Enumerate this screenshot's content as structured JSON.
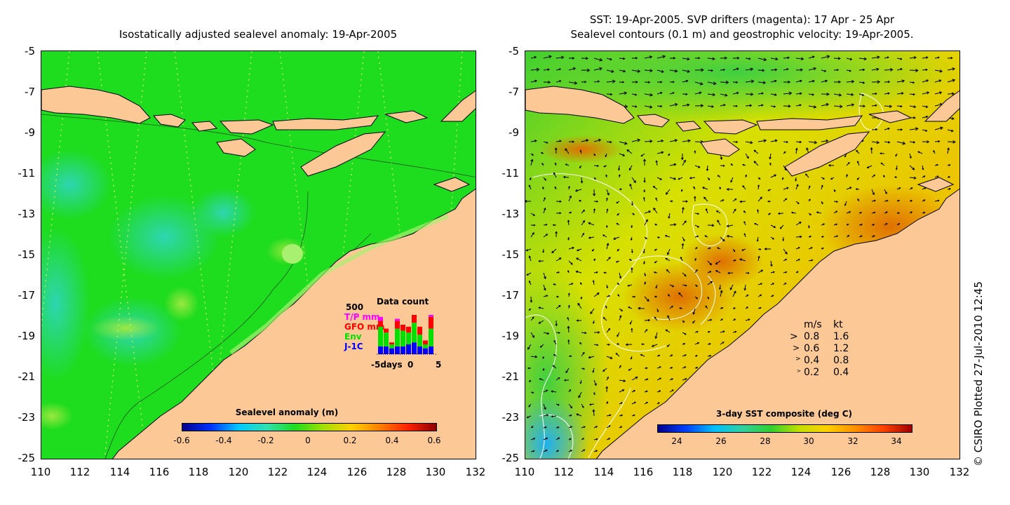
{
  "left_panel": {
    "title": "Isostatically adjusted sealevel anomaly: 19-Apr-2005",
    "y_ticks": [
      "-5",
      "-7",
      "-9",
      "-11",
      "-13",
      "-15",
      "-17",
      "-19",
      "-21",
      "-23",
      "-25"
    ],
    "x_ticks": [
      "110",
      "112",
      "114",
      "116",
      "118",
      "120",
      "122",
      "124",
      "126",
      "128",
      "130",
      "132"
    ],
    "colorbar": {
      "title": "Sealevel anomaly (m)",
      "ticks": [
        "-0.6",
        "-0.4",
        "-0.2",
        "0",
        "0.2",
        "0.4",
        "0.6"
      ]
    },
    "inset": {
      "title": "Data count",
      "scale_label": "500",
      "legend": [
        {
          "label": "T/P mm",
          "color": "#ff00ff"
        },
        {
          "label": "GFO mm",
          "color": "#ff0000"
        },
        {
          "label": "Env",
          "color": "#00e000"
        },
        {
          "label": "J-1C",
          "color": "#0000ff"
        }
      ],
      "x_labels": [
        "-5days",
        "0",
        "5"
      ],
      "bars": [
        {
          "jc": 0.2,
          "env": 0.5,
          "gfo": 0.15,
          "tp": 0.1
        },
        {
          "jc": 0.2,
          "env": 0.35,
          "gfo": 0.1,
          "tp": 0.0
        },
        {
          "jc": 0.15,
          "env": 0.1,
          "gfo": 0.05,
          "tp": 0.0
        },
        {
          "jc": 0.2,
          "env": 0.45,
          "gfo": 0.2,
          "tp": 0.05
        },
        {
          "jc": 0.2,
          "env": 0.4,
          "gfo": 0.15,
          "tp": 0.0
        },
        {
          "jc": 0.25,
          "env": 0.3,
          "gfo": 0.15,
          "tp": 0.0
        },
        {
          "jc": 0.3,
          "env": 0.5,
          "gfo": 0.3,
          "tp": 0.15
        },
        {
          "jc": 0.2,
          "env": 0.3,
          "gfo": 0.2,
          "tp": 0.0
        },
        {
          "jc": 0.15,
          "env": 0.1,
          "gfo": 0.1,
          "tp": 0.0
        },
        {
          "jc": 0.2,
          "env": 0.45,
          "gfo": 0.3,
          "tp": 0.2
        }
      ]
    }
  },
  "right_panel": {
    "title_line1": "SST: 19-Apr-2005. SVP drifters (magenta): 17 Apr - 25 Apr",
    "title_line2": "Sealevel contours (0.1 m) and geostrophic velocity: 19-Apr-2005.",
    "y_ticks": [
      "-5",
      "-7",
      "-9",
      "-11",
      "-13",
      "-15",
      "-17",
      "-19",
      "-21",
      "-23",
      "-25"
    ],
    "x_ticks": [
      "110",
      "112",
      "114",
      "116",
      "118",
      "120",
      "122",
      "124",
      "126",
      "128",
      "130",
      "132"
    ],
    "colorbar": {
      "title": "3-day SST composite (deg C)",
      "ticks": [
        "24",
        "26",
        "28",
        "30",
        "32",
        "34"
      ]
    },
    "velocity_legend": {
      "header_ms": "m/s",
      "header_kt": "kt",
      "rows": [
        {
          "ms": "0.8",
          "kt": "1.6"
        },
        {
          "ms": "0.6",
          "kt": "1.2"
        },
        {
          "ms": "0.4",
          "kt": "0.8"
        },
        {
          "ms": "0.2",
          "kt": "0.4"
        }
      ]
    }
  },
  "credit": "© CSIRO Plotted 27-Jul-2010 12:45",
  "colors": {
    "land": "#fbc896",
    "ocean_green": "#1edc1e",
    "sst_yellow": "#f0d800",
    "sst_orange": "#f09000"
  }
}
